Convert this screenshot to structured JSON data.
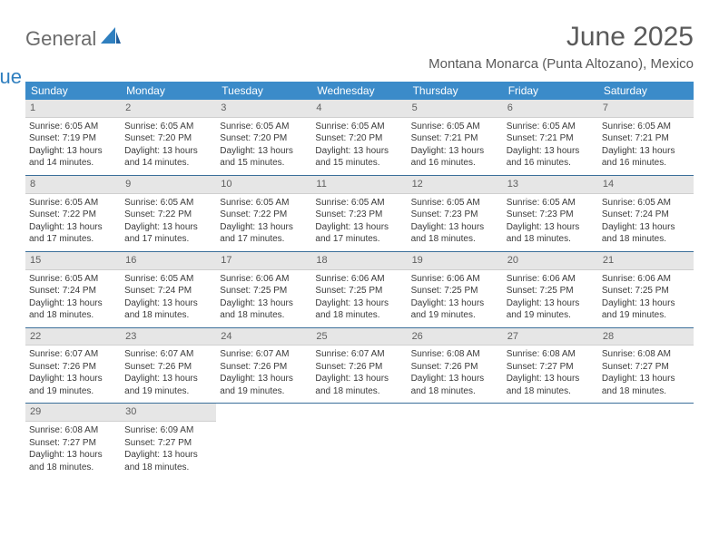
{
  "logo": {
    "general": "General",
    "blue": "Blue"
  },
  "header": {
    "month_title": "June 2025",
    "location": "Montana Monarca (Punta Altozano), Mexico"
  },
  "colors": {
    "header_bg": "#3b8bc9",
    "date_bar_bg": "#e6e6e6",
    "week_divider": "#3b6f9a",
    "logo_blue": "#2f7fbf",
    "text_gray": "#6b6b6b"
  },
  "day_labels": [
    "Sunday",
    "Monday",
    "Tuesday",
    "Wednesday",
    "Thursday",
    "Friday",
    "Saturday"
  ],
  "weeks": [
    [
      {
        "date": "1",
        "sunrise": "Sunrise: 6:05 AM",
        "sunset": "Sunset: 7:19 PM",
        "daylight": "Daylight: 13 hours and 14 minutes."
      },
      {
        "date": "2",
        "sunrise": "Sunrise: 6:05 AM",
        "sunset": "Sunset: 7:20 PM",
        "daylight": "Daylight: 13 hours and 14 minutes."
      },
      {
        "date": "3",
        "sunrise": "Sunrise: 6:05 AM",
        "sunset": "Sunset: 7:20 PM",
        "daylight": "Daylight: 13 hours and 15 minutes."
      },
      {
        "date": "4",
        "sunrise": "Sunrise: 6:05 AM",
        "sunset": "Sunset: 7:20 PM",
        "daylight": "Daylight: 13 hours and 15 minutes."
      },
      {
        "date": "5",
        "sunrise": "Sunrise: 6:05 AM",
        "sunset": "Sunset: 7:21 PM",
        "daylight": "Daylight: 13 hours and 16 minutes."
      },
      {
        "date": "6",
        "sunrise": "Sunrise: 6:05 AM",
        "sunset": "Sunset: 7:21 PM",
        "daylight": "Daylight: 13 hours and 16 minutes."
      },
      {
        "date": "7",
        "sunrise": "Sunrise: 6:05 AM",
        "sunset": "Sunset: 7:21 PM",
        "daylight": "Daylight: 13 hours and 16 minutes."
      }
    ],
    [
      {
        "date": "8",
        "sunrise": "Sunrise: 6:05 AM",
        "sunset": "Sunset: 7:22 PM",
        "daylight": "Daylight: 13 hours and 17 minutes."
      },
      {
        "date": "9",
        "sunrise": "Sunrise: 6:05 AM",
        "sunset": "Sunset: 7:22 PM",
        "daylight": "Daylight: 13 hours and 17 minutes."
      },
      {
        "date": "10",
        "sunrise": "Sunrise: 6:05 AM",
        "sunset": "Sunset: 7:22 PM",
        "daylight": "Daylight: 13 hours and 17 minutes."
      },
      {
        "date": "11",
        "sunrise": "Sunrise: 6:05 AM",
        "sunset": "Sunset: 7:23 PM",
        "daylight": "Daylight: 13 hours and 17 minutes."
      },
      {
        "date": "12",
        "sunrise": "Sunrise: 6:05 AM",
        "sunset": "Sunset: 7:23 PM",
        "daylight": "Daylight: 13 hours and 18 minutes."
      },
      {
        "date": "13",
        "sunrise": "Sunrise: 6:05 AM",
        "sunset": "Sunset: 7:23 PM",
        "daylight": "Daylight: 13 hours and 18 minutes."
      },
      {
        "date": "14",
        "sunrise": "Sunrise: 6:05 AM",
        "sunset": "Sunset: 7:24 PM",
        "daylight": "Daylight: 13 hours and 18 minutes."
      }
    ],
    [
      {
        "date": "15",
        "sunrise": "Sunrise: 6:05 AM",
        "sunset": "Sunset: 7:24 PM",
        "daylight": "Daylight: 13 hours and 18 minutes."
      },
      {
        "date": "16",
        "sunrise": "Sunrise: 6:05 AM",
        "sunset": "Sunset: 7:24 PM",
        "daylight": "Daylight: 13 hours and 18 minutes."
      },
      {
        "date": "17",
        "sunrise": "Sunrise: 6:06 AM",
        "sunset": "Sunset: 7:25 PM",
        "daylight": "Daylight: 13 hours and 18 minutes."
      },
      {
        "date": "18",
        "sunrise": "Sunrise: 6:06 AM",
        "sunset": "Sunset: 7:25 PM",
        "daylight": "Daylight: 13 hours and 18 minutes."
      },
      {
        "date": "19",
        "sunrise": "Sunrise: 6:06 AM",
        "sunset": "Sunset: 7:25 PM",
        "daylight": "Daylight: 13 hours and 19 minutes."
      },
      {
        "date": "20",
        "sunrise": "Sunrise: 6:06 AM",
        "sunset": "Sunset: 7:25 PM",
        "daylight": "Daylight: 13 hours and 19 minutes."
      },
      {
        "date": "21",
        "sunrise": "Sunrise: 6:06 AM",
        "sunset": "Sunset: 7:25 PM",
        "daylight": "Daylight: 13 hours and 19 minutes."
      }
    ],
    [
      {
        "date": "22",
        "sunrise": "Sunrise: 6:07 AM",
        "sunset": "Sunset: 7:26 PM",
        "daylight": "Daylight: 13 hours and 19 minutes."
      },
      {
        "date": "23",
        "sunrise": "Sunrise: 6:07 AM",
        "sunset": "Sunset: 7:26 PM",
        "daylight": "Daylight: 13 hours and 19 minutes."
      },
      {
        "date": "24",
        "sunrise": "Sunrise: 6:07 AM",
        "sunset": "Sunset: 7:26 PM",
        "daylight": "Daylight: 13 hours and 19 minutes."
      },
      {
        "date": "25",
        "sunrise": "Sunrise: 6:07 AM",
        "sunset": "Sunset: 7:26 PM",
        "daylight": "Daylight: 13 hours and 18 minutes."
      },
      {
        "date": "26",
        "sunrise": "Sunrise: 6:08 AM",
        "sunset": "Sunset: 7:26 PM",
        "daylight": "Daylight: 13 hours and 18 minutes."
      },
      {
        "date": "27",
        "sunrise": "Sunrise: 6:08 AM",
        "sunset": "Sunset: 7:27 PM",
        "daylight": "Daylight: 13 hours and 18 minutes."
      },
      {
        "date": "28",
        "sunrise": "Sunrise: 6:08 AM",
        "sunset": "Sunset: 7:27 PM",
        "daylight": "Daylight: 13 hours and 18 minutes."
      }
    ],
    [
      {
        "date": "29",
        "sunrise": "Sunrise: 6:08 AM",
        "sunset": "Sunset: 7:27 PM",
        "daylight": "Daylight: 13 hours and 18 minutes."
      },
      {
        "date": "30",
        "sunrise": "Sunrise: 6:09 AM",
        "sunset": "Sunset: 7:27 PM",
        "daylight": "Daylight: 13 hours and 18 minutes."
      },
      null,
      null,
      null,
      null,
      null
    ]
  ]
}
